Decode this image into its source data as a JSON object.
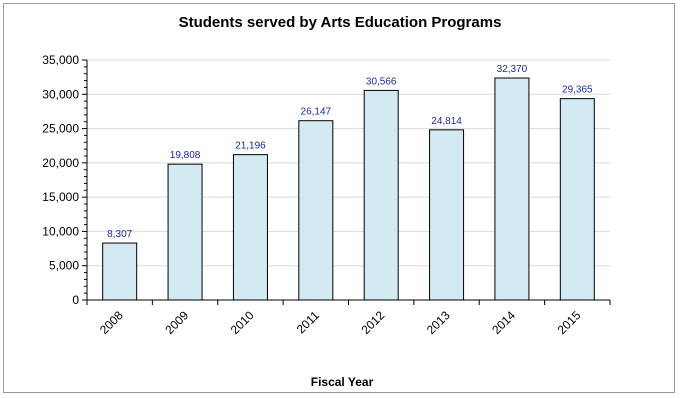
{
  "chart_data": {
    "type": "bar",
    "title": "Students served by Arts Education Programs",
    "xlabel": "Fiscal Year",
    "ylabel": "",
    "categories": [
      "2008",
      "2009",
      "2010",
      "2011",
      "2012",
      "2013",
      "2014",
      "2015"
    ],
    "values": [
      8307,
      19808,
      21196,
      26147,
      30566,
      24814,
      32370,
      29365
    ],
    "value_labels": [
      "8,307",
      "19,808",
      "21,196",
      "26,147",
      "30,566",
      "24,814",
      "32,370",
      "29,365"
    ],
    "ylim": [
      0,
      35000
    ],
    "yticks": [
      0,
      5000,
      10000,
      15000,
      20000,
      25000,
      30000,
      35000
    ],
    "ytick_labels": [
      "0",
      "5,000",
      "10,000",
      "15,000",
      "20,000",
      "25,000",
      "30,000",
      "35,000"
    ],
    "grid": true,
    "colors": {
      "bar_fill": "#d4eaf2",
      "bar_stroke": "#000000",
      "label": "#1a2a99"
    }
  }
}
